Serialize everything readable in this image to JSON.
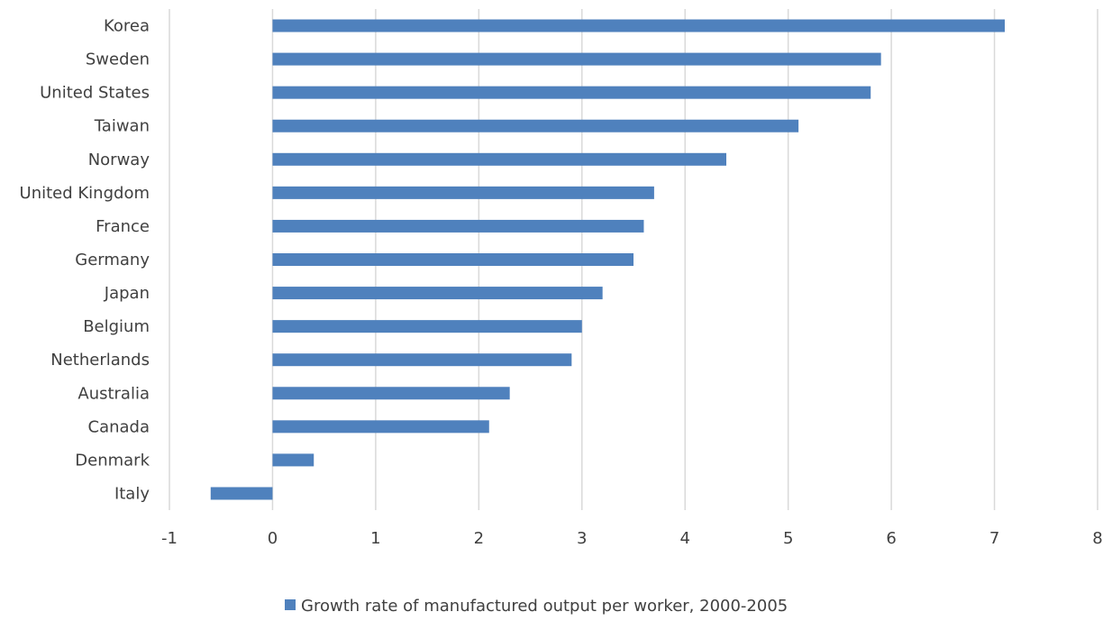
{
  "chart_data": {
    "type": "bar",
    "orientation": "horizontal",
    "categories": [
      "Korea",
      "Sweden",
      "United States",
      "Taiwan",
      "Norway",
      "United Kingdom",
      "France",
      "Germany",
      "Japan",
      "Belgium",
      "Netherlands",
      "Australia",
      "Canada",
      "Denmark",
      "Italy"
    ],
    "series": [
      {
        "name": "Growth rate of manufactured output per worker, 2000-2005",
        "values": [
          7.1,
          5.9,
          5.8,
          5.1,
          4.4,
          3.7,
          3.6,
          3.5,
          3.2,
          3.0,
          2.9,
          2.3,
          2.1,
          0.4,
          -0.6
        ],
        "color": "#4f81bd"
      }
    ],
    "title": "",
    "xlabel": "",
    "ylabel": "",
    "xlim": [
      -1,
      8
    ],
    "xticks": [
      "-1",
      "0",
      "1",
      "2",
      "3",
      "4",
      "5",
      "6",
      "7",
      "8"
    ],
    "grid": "vertical",
    "legend_position": "bottom",
    "gridline_color": "#d9d9d9",
    "label_color": "#404040"
  }
}
